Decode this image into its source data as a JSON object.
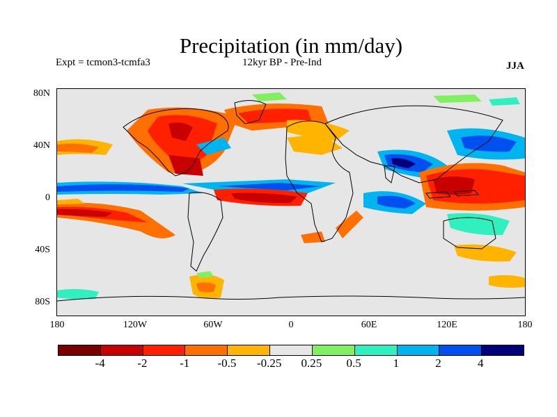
{
  "title": "Precipitation (in mm/day)",
  "subtitle_left": "Expt = tcmon3-tcmfa3",
  "subtitle_center": "12kyr BP - Pre-Ind",
  "season": "JJA",
  "y_ticks": [
    "80N",
    "40N",
    "0",
    "40S",
    "80S"
  ],
  "x_ticks": [
    "180",
    "120W",
    "60W",
    "0",
    "60E",
    "120E",
    "180"
  ],
  "colorbar": {
    "colors": [
      "#7a0000",
      "#c80000",
      "#ff2000",
      "#ff7000",
      "#ffb400",
      "#e6e6e6",
      "#80f060",
      "#30f0c0",
      "#00b4f0",
      "#0050f0",
      "#00007a"
    ],
    "labels": [
      "-4",
      "-2",
      "-1",
      "-0.5",
      "-0.25",
      "0.25",
      "0.5",
      "1",
      "2",
      "4"
    ]
  },
  "chart_data": {
    "type": "heatmap",
    "variable": "Precipitation",
    "units": "mm/day",
    "season": "JJA",
    "xlim": [
      -180,
      180
    ],
    "ylim": [
      -90,
      90
    ],
    "levels": [
      -4,
      -2,
      -1,
      -0.5,
      -0.25,
      0.25,
      0.5,
      1,
      2,
      4
    ]
  }
}
